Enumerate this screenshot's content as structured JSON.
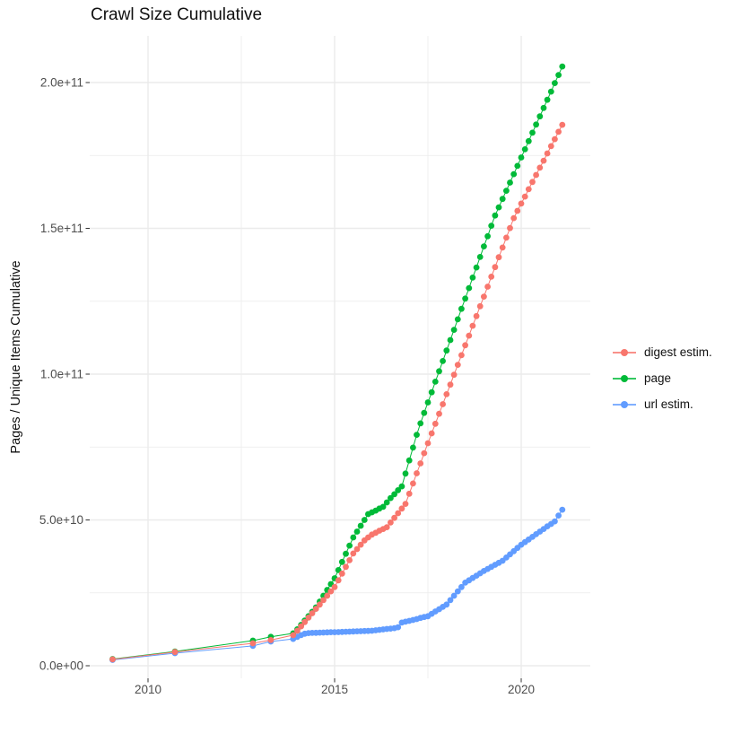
{
  "chart_data": {
    "type": "scatter",
    "title": "Crawl Size Cumulative",
    "xlabel": "",
    "ylabel": "Pages / Unique Items Cumulative",
    "value_unit": "billions (1e9) of pages / unique items",
    "xlim": [
      2008.45,
      2021.85
    ],
    "ylim": [
      0,
      216
    ],
    "grid": "major and minor, light gray on white",
    "legend_position": "right-center",
    "x_axis": {
      "major_ticks": [
        {
          "label": "2010",
          "year": 2010
        },
        {
          "label": "2015",
          "year": 2015
        },
        {
          "label": "2020",
          "year": 2020
        }
      ],
      "minor_gridlines": [
        2012.5,
        2017.5
      ]
    },
    "y_axis": {
      "major_ticks": [
        {
          "label": "0.0e+00",
          "value": 0
        },
        {
          "label": "5.0e+10",
          "value": 50
        },
        {
          "label": "1.0e+11",
          "value": 100
        },
        {
          "label": "1.5e+11",
          "value": 150
        },
        {
          "label": "2.0e+11",
          "value": 200
        }
      ],
      "minor_gridlines": [
        25,
        75,
        125,
        175
      ]
    },
    "series": [
      {
        "name": "digest estim.",
        "color": "#F8766D",
        "points": [
          [
            2009.05,
            2.2
          ],
          [
            2010.72,
            4.7
          ],
          [
            2012.81,
            7.7
          ],
          [
            2013.29,
            8.8
          ],
          [
            2013.89,
            10.5
          ],
          [
            2014.0,
            12
          ],
          [
            2014.1,
            13.5
          ],
          [
            2014.2,
            15
          ],
          [
            2014.3,
            16.5
          ],
          [
            2014.4,
            18
          ],
          [
            2014.5,
            19.5
          ],
          [
            2014.6,
            21
          ],
          [
            2014.7,
            22.5
          ],
          [
            2014.8,
            24
          ],
          [
            2014.9,
            25.5
          ],
          [
            2015.0,
            27
          ],
          [
            2015.1,
            29.3
          ],
          [
            2015.2,
            31.6
          ],
          [
            2015.3,
            33.9
          ],
          [
            2015.4,
            36.2
          ],
          [
            2015.5,
            38.5
          ],
          [
            2015.6,
            40
          ],
          [
            2015.7,
            41.5
          ],
          [
            2015.8,
            43
          ],
          [
            2015.9,
            44
          ],
          [
            2016.0,
            45
          ],
          [
            2016.1,
            45.6
          ],
          [
            2016.2,
            46.3
          ],
          [
            2016.3,
            46.9
          ],
          [
            2016.4,
            47.5
          ],
          [
            2016.5,
            49.1
          ],
          [
            2016.6,
            50.7
          ],
          [
            2016.7,
            52.3
          ],
          [
            2016.8,
            53.9
          ],
          [
            2016.9,
            55.5
          ],
          [
            2017.0,
            59
          ],
          [
            2017.1,
            62.5
          ],
          [
            2017.2,
            66
          ],
          [
            2017.3,
            69.4
          ],
          [
            2017.4,
            72.9
          ],
          [
            2017.5,
            76.3
          ],
          [
            2017.6,
            79.7
          ],
          [
            2017.7,
            83
          ],
          [
            2017.8,
            86.4
          ],
          [
            2017.9,
            89.7
          ],
          [
            2018.0,
            93.1
          ],
          [
            2018.1,
            96.4
          ],
          [
            2018.2,
            99.8
          ],
          [
            2018.3,
            103.2
          ],
          [
            2018.4,
            106.5
          ],
          [
            2018.5,
            109.9
          ],
          [
            2018.6,
            113.2
          ],
          [
            2018.7,
            116.6
          ],
          [
            2018.8,
            119.9
          ],
          [
            2018.9,
            123.3
          ],
          [
            2019.0,
            126.6
          ],
          [
            2019.1,
            130
          ],
          [
            2019.2,
            133.4
          ],
          [
            2019.3,
            136.7
          ],
          [
            2019.4,
            140.1
          ],
          [
            2019.5,
            143.4
          ],
          [
            2019.6,
            146.8
          ],
          [
            2019.7,
            150.1
          ],
          [
            2019.8,
            153.5
          ],
          [
            2019.9,
            156
          ],
          [
            2020.0,
            158.5
          ],
          [
            2020.1,
            160.9
          ],
          [
            2020.2,
            163.4
          ],
          [
            2020.3,
            165.9
          ],
          [
            2020.4,
            168.3
          ],
          [
            2020.5,
            170.8
          ],
          [
            2020.6,
            173.2
          ],
          [
            2020.7,
            175.7
          ],
          [
            2020.8,
            178.2
          ],
          [
            2020.9,
            180.6
          ],
          [
            2021.0,
            183.1
          ],
          [
            2021.1,
            185.5
          ]
        ]
      },
      {
        "name": "page",
        "color": "#00BA38",
        "points": [
          [
            2009.05,
            2.3
          ],
          [
            2010.72,
            4.9
          ],
          [
            2012.81,
            8.6
          ],
          [
            2013.29,
            9.9
          ],
          [
            2013.89,
            11.1
          ],
          [
            2014.0,
            12.5
          ],
          [
            2014.1,
            14
          ],
          [
            2014.2,
            15.5
          ],
          [
            2014.3,
            17
          ],
          [
            2014.4,
            18.5
          ],
          [
            2014.5,
            20
          ],
          [
            2014.6,
            22
          ],
          [
            2014.7,
            24
          ],
          [
            2014.8,
            26
          ],
          [
            2014.9,
            28
          ],
          [
            2015.0,
            30
          ],
          [
            2015.1,
            32.8
          ],
          [
            2015.2,
            35.6
          ],
          [
            2015.3,
            38.4
          ],
          [
            2015.4,
            41.2
          ],
          [
            2015.5,
            44
          ],
          [
            2015.6,
            46
          ],
          [
            2015.7,
            48
          ],
          [
            2015.8,
            50
          ],
          [
            2015.9,
            52
          ],
          [
            2016.0,
            52.6
          ],
          [
            2016.1,
            53.2
          ],
          [
            2016.2,
            53.9
          ],
          [
            2016.3,
            54.5
          ],
          [
            2016.4,
            56
          ],
          [
            2016.5,
            57.5
          ],
          [
            2016.6,
            58.8
          ],
          [
            2016.7,
            60.2
          ],
          [
            2016.8,
            61.5
          ],
          [
            2016.9,
            65.9
          ],
          [
            2017.0,
            70.4
          ],
          [
            2017.1,
            74.8
          ],
          [
            2017.2,
            79.2
          ],
          [
            2017.3,
            83.1
          ],
          [
            2017.4,
            86.7
          ],
          [
            2017.5,
            90.3
          ],
          [
            2017.6,
            93.8
          ],
          [
            2017.7,
            97.4
          ],
          [
            2017.8,
            101
          ],
          [
            2017.9,
            104.5
          ],
          [
            2018.0,
            108.1
          ],
          [
            2018.1,
            111.7
          ],
          [
            2018.2,
            115.2
          ],
          [
            2018.3,
            118.8
          ],
          [
            2018.4,
            122.4
          ],
          [
            2018.5,
            125.9
          ],
          [
            2018.6,
            129.5
          ],
          [
            2018.7,
            133.1
          ],
          [
            2018.8,
            136.6
          ],
          [
            2018.9,
            140.2
          ],
          [
            2019.0,
            143.8
          ],
          [
            2019.1,
            147.3
          ],
          [
            2019.2,
            150.9
          ],
          [
            2019.3,
            154.4
          ],
          [
            2019.4,
            157.2
          ],
          [
            2019.5,
            160.1
          ],
          [
            2019.6,
            162.9
          ],
          [
            2019.7,
            165.7
          ],
          [
            2019.8,
            168.6
          ],
          [
            2019.9,
            171.4
          ],
          [
            2020.0,
            174.3
          ],
          [
            2020.1,
            177.1
          ],
          [
            2020.2,
            179.9
          ],
          [
            2020.3,
            182.8
          ],
          [
            2020.4,
            185.6
          ],
          [
            2020.5,
            188.4
          ],
          [
            2020.6,
            191.3
          ],
          [
            2020.7,
            194.1
          ],
          [
            2020.8,
            196.9
          ],
          [
            2020.9,
            199.8
          ],
          [
            2021.0,
            202.6
          ],
          [
            2021.1,
            205.5
          ]
        ]
      },
      {
        "name": "url estim.",
        "color": "#619CFF",
        "points": [
          [
            2009.05,
            2.0
          ],
          [
            2010.72,
            4.3
          ],
          [
            2012.81,
            6.8
          ],
          [
            2013.29,
            8.3
          ],
          [
            2013.89,
            9.2
          ],
          [
            2014.0,
            9.9
          ],
          [
            2014.1,
            10.5
          ],
          [
            2014.2,
            11
          ],
          [
            2014.3,
            11.2
          ],
          [
            2014.4,
            11.25
          ],
          [
            2014.5,
            11.3
          ],
          [
            2014.6,
            11.35
          ],
          [
            2014.7,
            11.4
          ],
          [
            2014.8,
            11.45
          ],
          [
            2014.9,
            11.5
          ],
          [
            2015.0,
            11.5
          ],
          [
            2015.1,
            11.55
          ],
          [
            2015.2,
            11.6
          ],
          [
            2015.3,
            11.65
          ],
          [
            2015.4,
            11.7
          ],
          [
            2015.5,
            11.75
          ],
          [
            2015.6,
            11.8
          ],
          [
            2015.7,
            11.85
          ],
          [
            2015.8,
            11.9
          ],
          [
            2015.9,
            11.95
          ],
          [
            2016.0,
            12
          ],
          [
            2016.1,
            12.15
          ],
          [
            2016.2,
            12.3
          ],
          [
            2016.3,
            12.45
          ],
          [
            2016.4,
            12.6
          ],
          [
            2016.5,
            12.75
          ],
          [
            2016.6,
            12.9
          ],
          [
            2016.7,
            13.2
          ],
          [
            2016.8,
            14.8
          ],
          [
            2016.9,
            15.1
          ],
          [
            2017.0,
            15.4
          ],
          [
            2017.1,
            15.7
          ],
          [
            2017.2,
            16
          ],
          [
            2017.3,
            16.4
          ],
          [
            2017.4,
            16.7
          ],
          [
            2017.5,
            17
          ],
          [
            2017.6,
            17.8
          ],
          [
            2017.7,
            18.6
          ],
          [
            2017.8,
            19.4
          ],
          [
            2017.9,
            20.2
          ],
          [
            2018.0,
            21
          ],
          [
            2018.1,
            22.5
          ],
          [
            2018.2,
            24
          ],
          [
            2018.3,
            25.5
          ],
          [
            2018.4,
            27
          ],
          [
            2018.5,
            28.5
          ],
          [
            2018.6,
            29.3
          ],
          [
            2018.7,
            30.1
          ],
          [
            2018.8,
            30.9
          ],
          [
            2018.9,
            31.7
          ],
          [
            2019.0,
            32.5
          ],
          [
            2019.1,
            33.2
          ],
          [
            2019.2,
            33.9
          ],
          [
            2019.3,
            34.6
          ],
          [
            2019.4,
            35.3
          ],
          [
            2019.5,
            36
          ],
          [
            2019.6,
            37.1
          ],
          [
            2019.7,
            38.2
          ],
          [
            2019.8,
            39.3
          ],
          [
            2019.9,
            40.4
          ],
          [
            2020.0,
            41.5
          ],
          [
            2020.1,
            42.4
          ],
          [
            2020.2,
            43.3
          ],
          [
            2020.3,
            44.2
          ],
          [
            2020.4,
            45.1
          ],
          [
            2020.5,
            46
          ],
          [
            2020.6,
            46.9
          ],
          [
            2020.7,
            47.8
          ],
          [
            2020.8,
            48.6
          ],
          [
            2020.9,
            49.5
          ],
          [
            2021.0,
            51.5
          ],
          [
            2021.1,
            53.5
          ]
        ]
      }
    ],
    "colors": {
      "background": "#FFFFFF",
      "gridline": "#EBEBEB",
      "tick_mark": "#333333",
      "tick_label": "#4D4D4D",
      "title_text": "#111111"
    }
  }
}
